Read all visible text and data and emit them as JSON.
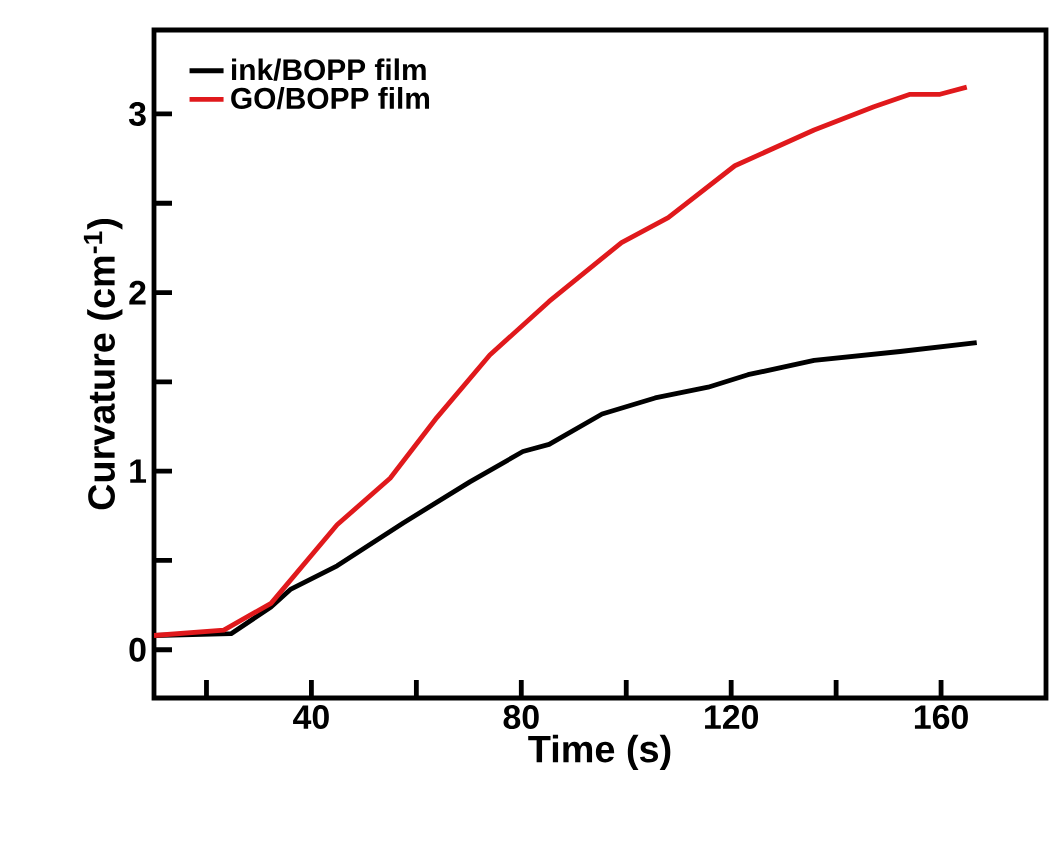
{
  "chart_data": {
    "type": "line",
    "xlabel": "Time (s)",
    "ylabel": "Curvature (cm$^{-1}$)",
    "xlim": [
      10,
      180
    ],
    "ylim": [
      -0.27,
      3.47
    ],
    "xticks": [
      {
        "value": 20,
        "label": null
      },
      40,
      {
        "value": 60,
        "label": null
      },
      80,
      {
        "value": 100,
        "label": null
      },
      120,
      {
        "value": 140,
        "label": null
      },
      160
    ],
    "yticks": [
      0,
      {
        "value": 0.5,
        "label": null
      },
      1,
      {
        "value": 1.5,
        "label": null
      },
      2,
      {
        "value": 2.5,
        "label": null
      },
      3
    ],
    "legend": "top left",
    "grid": false,
    "marker": "none",
    "line_style": "solid",
    "series": [
      {
        "name": "ink/BOPP film",
        "color": "#000000",
        "x": [
          10,
          24.7,
          32.3,
          36.1,
          44.9,
          57.5,
          70.2,
          80.3,
          85.3,
          95.4,
          105.5,
          115.6,
          123.2,
          135.8,
          152.2,
          166.8
        ],
        "values": [
          0.08,
          0.09,
          0.24,
          0.34,
          0.47,
          0.71,
          0.94,
          1.11,
          1.15,
          1.32,
          1.41,
          1.47,
          1.54,
          1.62,
          1.67,
          1.72
        ]
      },
      {
        "name": "GO/BOPP film",
        "color": "#e0191c",
        "x": [
          10,
          23.3,
          32.3,
          44.9,
          55,
          63.9,
          74,
          85.3,
          99.1,
          108,
          120.7,
          135.8,
          147.2,
          154.1,
          159.8,
          164.9
        ],
        "values": [
          0.08,
          0.11,
          0.26,
          0.7,
          0.96,
          1.3,
          1.65,
          1.95,
          2.28,
          2.42,
          2.71,
          2.91,
          3.04,
          3.11,
          3.11,
          3.15
        ]
      }
    ]
  }
}
